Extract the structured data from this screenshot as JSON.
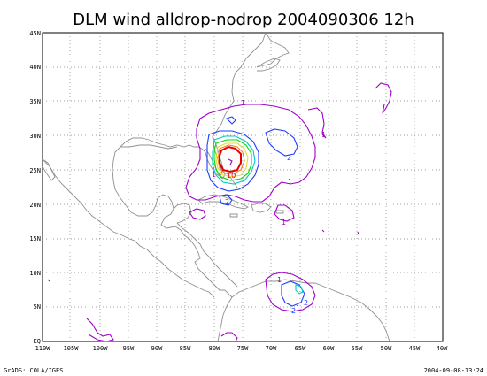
{
  "title": "DLM wind alldrop-nodrop 2004090306 12h",
  "footer_left": "GrADS: COLA/IGES",
  "footer_right": "2004-09-08-13:24",
  "x_ticks": [
    "110W",
    "105W",
    "100W",
    "95W",
    "90W",
    "85W",
    "80W",
    "75W",
    "70W",
    "65W",
    "60W",
    "55W",
    "50W",
    "45W",
    "40W"
  ],
  "y_ticks": [
    "EQ",
    "5N",
    "10N",
    "15N",
    "20N",
    "25N",
    "30N",
    "35N",
    "40N",
    "45N"
  ],
  "contour_labels": [
    "1",
    "1",
    "1",
    "1",
    "2",
    "2",
    "2",
    "2",
    "1",
    "1",
    "1",
    "10"
  ],
  "colors": {
    "coast": "#909090",
    "grid": "#808080",
    "magenta": "#a000c8",
    "blue": "#1e3cff",
    "cyan": "#00c8c8",
    "green": "#00dc00",
    "yellow": "#e6dc32",
    "orange": "#f08228",
    "red": "#e60000"
  }
}
